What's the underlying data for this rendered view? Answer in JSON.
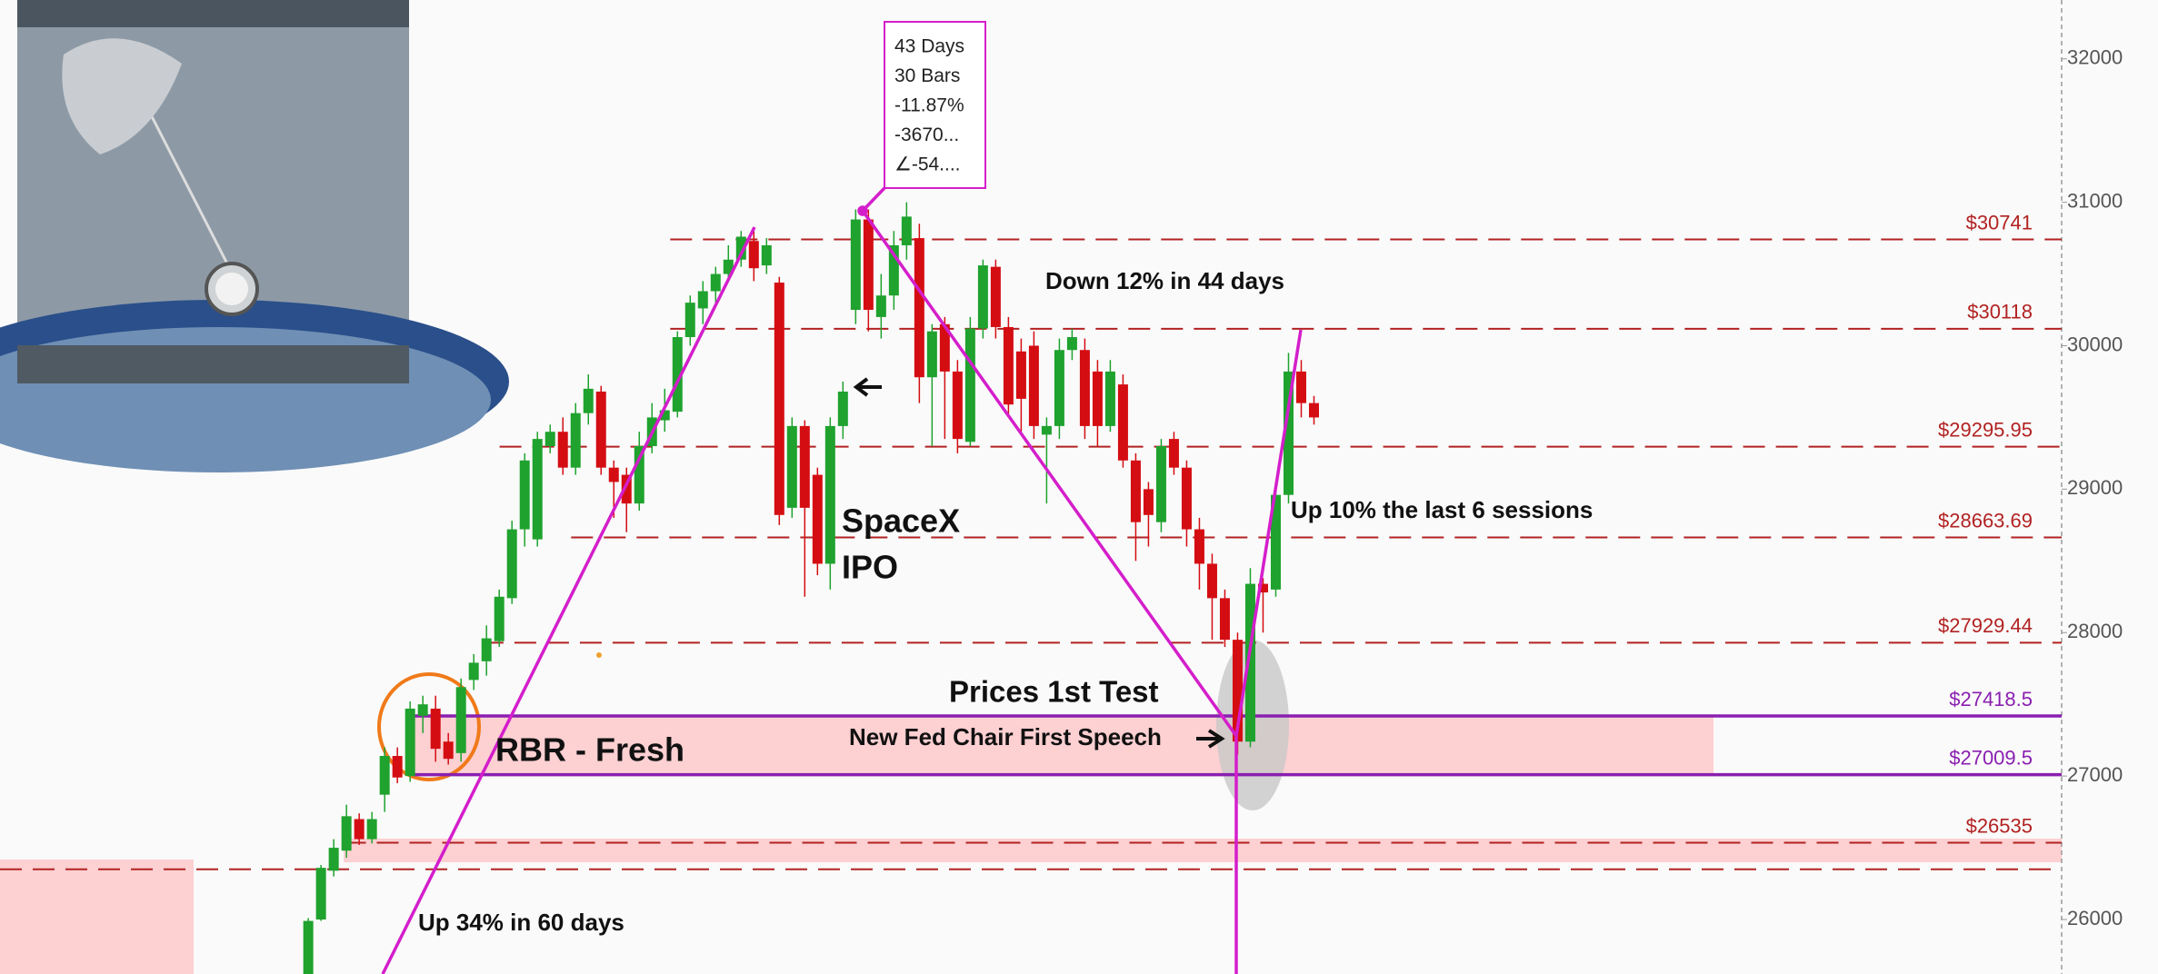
{
  "chart_data": {
    "type": "candlestick",
    "ylim": [
      25620,
      32410
    ],
    "yticks": [
      26000,
      27000,
      28000,
      29000,
      30000,
      31000,
      32000
    ],
    "up_color": "#1fa22e",
    "down_color": "#d40d12",
    "open": [
      25600,
      26000,
      26340,
      26480,
      26700,
      26560,
      26870,
      27140,
      27000,
      27420,
      27470,
      27240,
      27160,
      27670,
      27800,
      27940,
      28240,
      28720,
      28650,
      29300,
      29400,
      29150,
      29530,
      29680,
      29150,
      29100,
      28900,
      29300,
      29480,
      29540,
      30060,
      30260,
      30380,
      30500,
      30600,
      30730,
      30560,
      30440,
      28870,
      29440,
      29100,
      28480,
      29440,
      30250,
      30880,
      30200,
      30350,
      30700,
      30750,
      29780,
      30150,
      29820,
      29330,
      30120,
      30550,
      30130,
      29960,
      30000,
      29380,
      29440,
      29970,
      29970,
      29820,
      29440,
      29730,
      29200,
      29000,
      28770,
      29350,
      29150,
      28720,
      28480,
      28240,
      27950,
      27240,
      28340,
      28300,
      28960,
      29820,
      29600
    ],
    "high": [
      26010,
      26380,
      26560,
      26800,
      26740,
      26750,
      27200,
      27200,
      27520,
      27560,
      27560,
      27300,
      27680,
      27850,
      28050,
      28300,
      28780,
      29250,
      29400,
      29450,
      29500,
      29600,
      29800,
      29720,
      29200,
      29150,
      29400,
      29600,
      29700,
      30100,
      30350,
      30450,
      30550,
      30700,
      30800,
      30800,
      30750,
      30480,
      29500,
      29480,
      29150,
      29500,
      29750,
      30950,
      30950,
      30500,
      30800,
      31000,
      30850,
      30150,
      30200,
      29900,
      30200,
      30600,
      30600,
      30200,
      30050,
      30100,
      29500,
      30050,
      30120,
      30050,
      29900,
      29900,
      29800,
      29250,
      29050,
      29350,
      29400,
      29200,
      28800,
      28550,
      28300,
      28000,
      28450,
      28380,
      29050,
      29950,
      29900,
      29650
    ],
    "low": [
      25500,
      25990,
      26300,
      26430,
      26520,
      26530,
      26750,
      26950,
      26960,
      27300,
      27100,
      27080,
      27100,
      27600,
      27700,
      27900,
      28200,
      28600,
      28600,
      29250,
      29100,
      29100,
      29450,
      29100,
      28800,
      28700,
      28850,
      29250,
      29400,
      29500,
      30000,
      30150,
      30300,
      30450,
      30550,
      30450,
      30500,
      28750,
      28800,
      28250,
      28400,
      28300,
      29350,
      30150,
      30100,
      30050,
      30250,
      30600,
      29600,
      29300,
      29350,
      29250,
      29300,
      30050,
      30050,
      29500,
      29400,
      29350,
      28900,
      29350,
      29900,
      29350,
      29300,
      29400,
      29150,
      28500,
      28600,
      28700,
      29100,
      28600,
      28300,
      27950,
      27900,
      27150,
      27200,
      28000,
      28250,
      28900,
      29500,
      29450
    ],
    "close": [
      25990,
      26360,
      26500,
      26720,
      26560,
      26700,
      27140,
      26990,
      27470,
      27500,
      27190,
      27120,
      27620,
      27790,
      27960,
      28250,
      28720,
      29200,
      29350,
      29400,
      29150,
      29530,
      29700,
      29150,
      29050,
      28900,
      29300,
      29500,
      29550,
      30060,
      30300,
      30380,
      30500,
      30600,
      30760,
      30540,
      30700,
      28820,
      29440,
      28870,
      28480,
      29440,
      29680,
      30880,
      30250,
      30350,
      30700,
      30900,
      29780,
      30100,
      29820,
      29350,
      30120,
      30560,
      30130,
      29590,
      29630,
      29440,
      29440,
      29970,
      30060,
      29440,
      29440,
      29820,
      29200,
      28770,
      28820,
      29300,
      29150,
      28720,
      28480,
      28240,
      27950,
      27240,
      28340,
      28280,
      28960,
      29820,
      29600,
      29500
    ],
    "levels": [
      {
        "value": 30741,
        "label": "$30741",
        "color": "#b22222",
        "style": "dashed"
      },
      {
        "value": 30118,
        "label": "$30118",
        "color": "#b22222",
        "style": "dashed"
      },
      {
        "value": 29295.95,
        "label": "$29295.95",
        "color": "#b22222",
        "style": "dashed"
      },
      {
        "value": 28663.69,
        "label": "$28663.69",
        "color": "#b22222",
        "style": "dashed"
      },
      {
        "value": 27929.44,
        "label": "$27929.44",
        "color": "#b22222",
        "style": "dashed"
      },
      {
        "value": 27418.5,
        "label": "$27418.5",
        "color": "#8a1fb0",
        "style": "solid"
      },
      {
        "value": 27009.5,
        "label": "$27009.5",
        "color": "#8a1fb0",
        "style": "solid"
      },
      {
        "value": 26535,
        "label": "$26535",
        "color": "#b22222",
        "style": "dashed"
      },
      {
        "value": 26350,
        "color": "#b22222",
        "style": "dashed"
      }
    ],
    "annotations": [
      "Down 12% in 44 days",
      "Up 10% the last 6 sessions",
      "Prices 1st Test",
      "New Fed Chair First Speech",
      "RBR - Fresh",
      "Up 34% in 60 days",
      "SpaceX",
      "IPO"
    ],
    "measure": [
      "43 Days",
      "30 Bars",
      "-11.87%",
      "-3670...",
      "∠-54...."
    ]
  }
}
